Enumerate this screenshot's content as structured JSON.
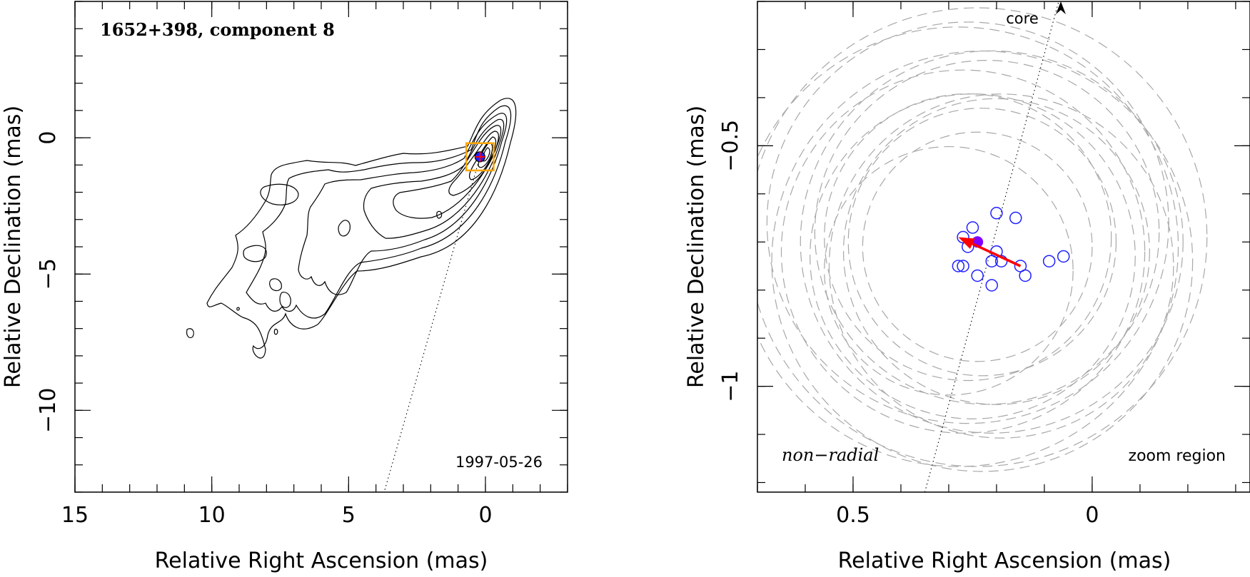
{
  "colors": {
    "contour": "#000000",
    "orange_box": "#ffa500",
    "blue": "#2020ff",
    "purple": "#8000ff",
    "red": "#ff0000",
    "gray_dash": "#a8a8a8"
  },
  "chart_data": [
    {
      "type": "contour",
      "title": "1652+398, component 8",
      "epoch": "1997-05-26",
      "xlabel": "Relative Right Ascension (mas)",
      "ylabel": "Relative Declination (mas)",
      "xlim": [
        15,
        -3
      ],
      "ylim": [
        -13,
        5
      ],
      "xticks": [
        15,
        10,
        5,
        0
      ],
      "yticks": [
        0,
        -5,
        -10
      ],
      "component_position": {
        "x": 0.2,
        "y": -0.7
      },
      "zoom_box": {
        "x": [
          -0.3,
          0.7
        ],
        "y": [
          -1.2,
          -0.2
        ]
      },
      "core_line": {
        "x": [
          0.2,
          3.7
        ],
        "y": [
          -0.7,
          -13
        ]
      }
    },
    {
      "type": "scatter",
      "ylabel": "Relative Declination (mas)",
      "xlabel": "Relative Right Ascension (mas)",
      "xlim": [
        0.7,
        -0.33
      ],
      "ylim": [
        -1.22,
        -0.2
      ],
      "xticks": [
        0.5,
        0
      ],
      "yticks": [
        -0.5,
        -1
      ],
      "core_label": "core",
      "motion_label": "non−radial",
      "region_label": "zoom region",
      "mean_position": {
        "x": 0.24,
        "y": -0.7
      },
      "motion_vector": {
        "from": {
          "x": 0.15,
          "y": -0.75
        },
        "to": {
          "x": 0.28,
          "y": -0.69
        }
      },
      "points": [
        {
          "x": 0.25,
          "y": -0.67
        },
        {
          "x": 0.26,
          "y": -0.71
        },
        {
          "x": 0.27,
          "y": -0.69
        },
        {
          "x": 0.28,
          "y": -0.75
        },
        {
          "x": 0.27,
          "y": -0.75
        },
        {
          "x": 0.24,
          "y": -0.77
        },
        {
          "x": 0.21,
          "y": -0.74
        },
        {
          "x": 0.2,
          "y": -0.72
        },
        {
          "x": 0.19,
          "y": -0.74
        },
        {
          "x": 0.21,
          "y": -0.79
        },
        {
          "x": 0.15,
          "y": -0.75
        },
        {
          "x": 0.14,
          "y": -0.77
        },
        {
          "x": 0.09,
          "y": -0.74
        },
        {
          "x": 0.06,
          "y": -0.73
        },
        {
          "x": 0.2,
          "y": -0.64
        },
        {
          "x": 0.16,
          "y": -0.65
        }
      ],
      "circles": [
        {
          "x": 0.24,
          "y": -0.71,
          "r": 0.24
        },
        {
          "x": 0.23,
          "y": -0.7,
          "r": 0.28
        },
        {
          "x": 0.26,
          "y": -0.69,
          "r": 0.3
        },
        {
          "x": 0.2,
          "y": -0.72,
          "r": 0.32
        },
        {
          "x": 0.25,
          "y": -0.73,
          "r": 0.34
        },
        {
          "x": 0.22,
          "y": -0.68,
          "r": 0.36
        },
        {
          "x": 0.27,
          "y": -0.72,
          "r": 0.38
        },
        {
          "x": 0.21,
          "y": -0.7,
          "r": 0.4
        },
        {
          "x": 0.26,
          "y": -0.66,
          "r": 0.42
        },
        {
          "x": 0.23,
          "y": -0.74,
          "r": 0.44
        },
        {
          "x": 0.28,
          "y": -0.71,
          "r": 0.46
        },
        {
          "x": 0.24,
          "y": -0.69,
          "r": 0.48
        },
        {
          "x": 0.19,
          "y": -0.75,
          "r": 0.36
        },
        {
          "x": 0.3,
          "y": -0.76,
          "r": 0.26
        }
      ],
      "core_line": {
        "x": [
          0.35,
          0.07
        ],
        "y": [
          -1.22,
          -0.2
        ]
      }
    }
  ]
}
